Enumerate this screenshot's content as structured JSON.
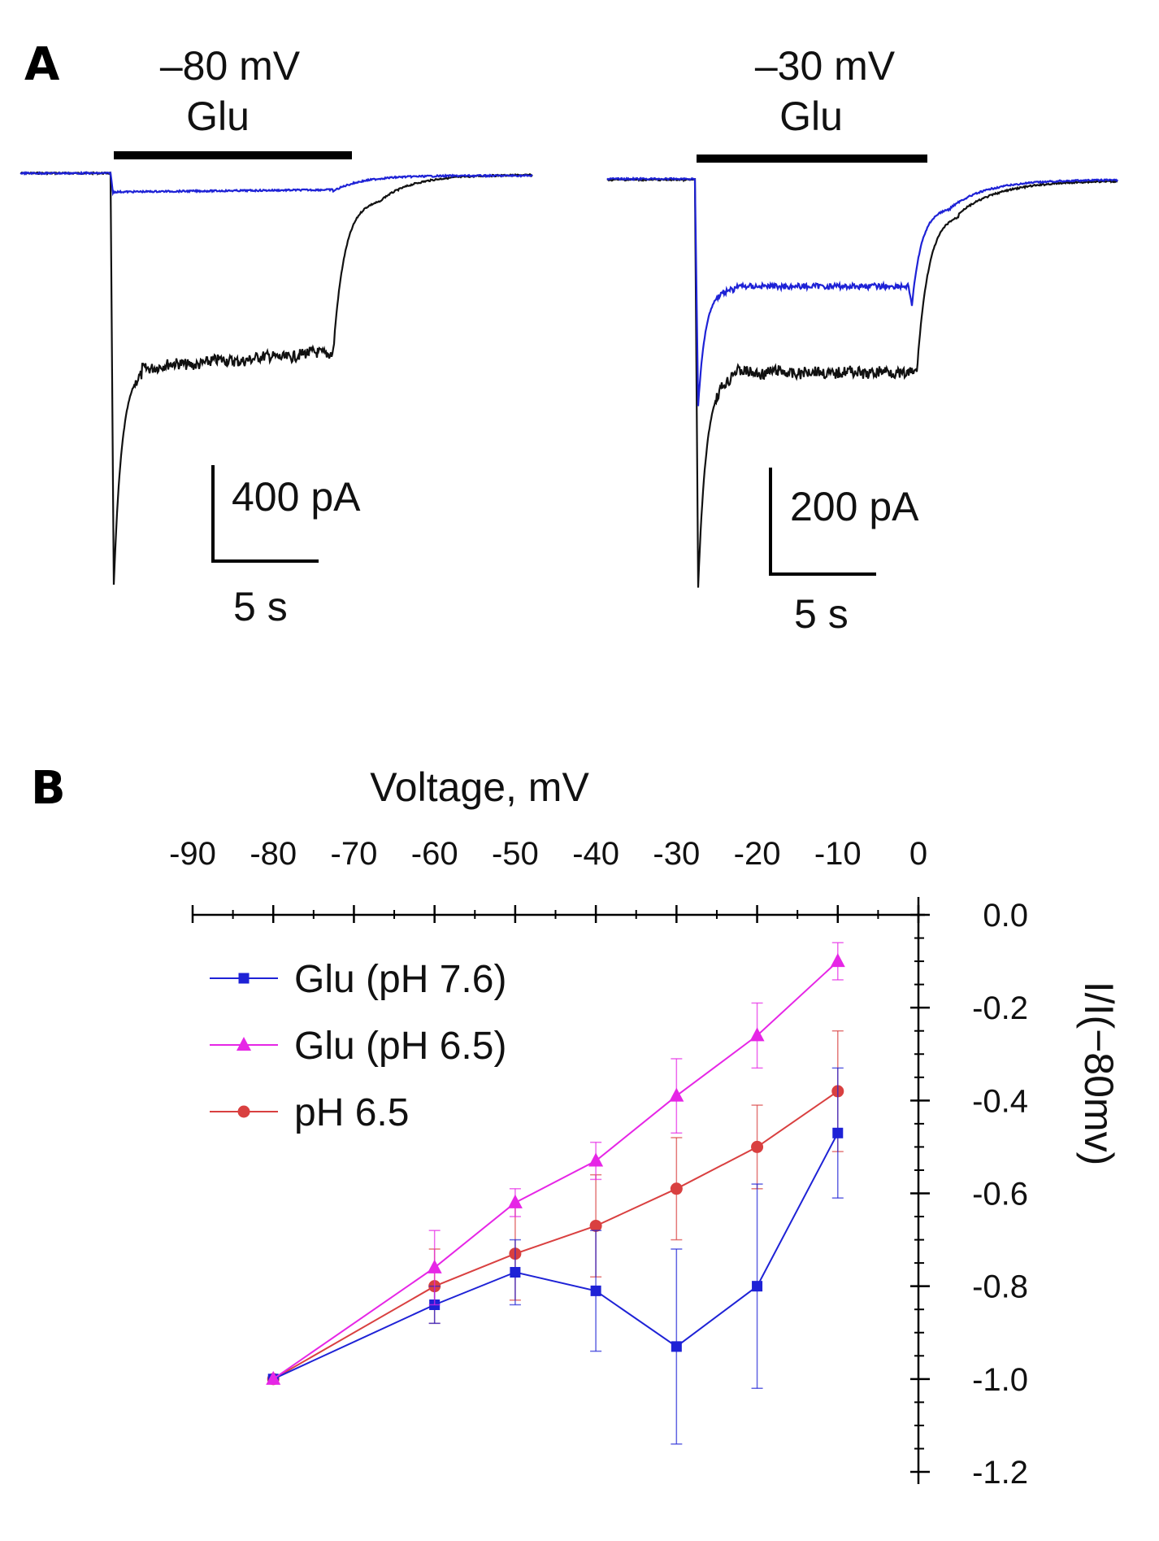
{
  "panel_a": {
    "letter": "A",
    "left": {
      "voltage": "–80 mV",
      "drug": "Glu",
      "scale_current": "400 pA",
      "scale_time": "5 s"
    },
    "right": {
      "voltage": "–30 mV",
      "drug": "Glu",
      "scale_current": "200 pA",
      "scale_time": "5 s"
    },
    "colors": {
      "control": "#111111",
      "low_ph": "#1e22d6"
    }
  },
  "panel_b": {
    "letter": "B"
  },
  "chart_data": {
    "type": "line",
    "title": "",
    "xlabel": "Voltage, mV",
    "ylabel": "I/I(−80mv)",
    "x_axis_position": "top",
    "y_axis_position": "right",
    "xlim": [
      -90,
      0
    ],
    "ylim": [
      -1.2,
      0.0
    ],
    "x_ticks": [
      -90,
      -80,
      -70,
      -60,
      -50,
      -40,
      -30,
      -20,
      -10,
      0
    ],
    "x_tick_labels": [
      "-90",
      "-80",
      "-70",
      "-60",
      "-50",
      "-40",
      "-30",
      "-20",
      "-10",
      "0"
    ],
    "y_ticks": [
      0.0,
      -0.2,
      -0.4,
      -0.6,
      -0.8,
      -1.0,
      -1.2
    ],
    "y_tick_labels": [
      "0.0",
      "-0.2",
      "-0.4",
      "-0.6",
      "-0.8",
      "-1.0",
      "-1.2"
    ],
    "legend_position": "top-left",
    "grid": false,
    "series": [
      {
        "name": "Glu (pH 7.6)",
        "color": "#1e22d6",
        "marker": "square",
        "x": [
          -80,
          -60,
          -50,
          -40,
          -30,
          -20,
          -10
        ],
        "y": [
          -1.0,
          -0.84,
          -0.77,
          -0.81,
          -0.93,
          -0.8,
          -0.47
        ],
        "err": [
          0.0,
          0.04,
          0.07,
          0.13,
          0.21,
          0.22,
          0.14
        ]
      },
      {
        "name": "Glu (pH 6.5)",
        "color": "#e626e6",
        "marker": "triangle",
        "x": [
          -80,
          -60,
          -50,
          -40,
          -30,
          -20,
          -10
        ],
        "y": [
          -1.0,
          -0.76,
          -0.62,
          -0.53,
          -0.39,
          -0.26,
          -0.1
        ],
        "err": [
          0.0,
          0.08,
          0.03,
          0.04,
          0.08,
          0.07,
          0.04
        ]
      },
      {
        "name": "pH 6.5",
        "color": "#d94040",
        "marker": "circle",
        "x": [
          -80,
          -60,
          -50,
          -40,
          -30,
          -20,
          -10
        ],
        "y": [
          -1.0,
          -0.8,
          -0.73,
          -0.67,
          -0.59,
          -0.5,
          -0.38
        ],
        "err": [
          0.0,
          0.08,
          0.1,
          0.11,
          0.11,
          0.09,
          0.13
        ]
      }
    ]
  }
}
